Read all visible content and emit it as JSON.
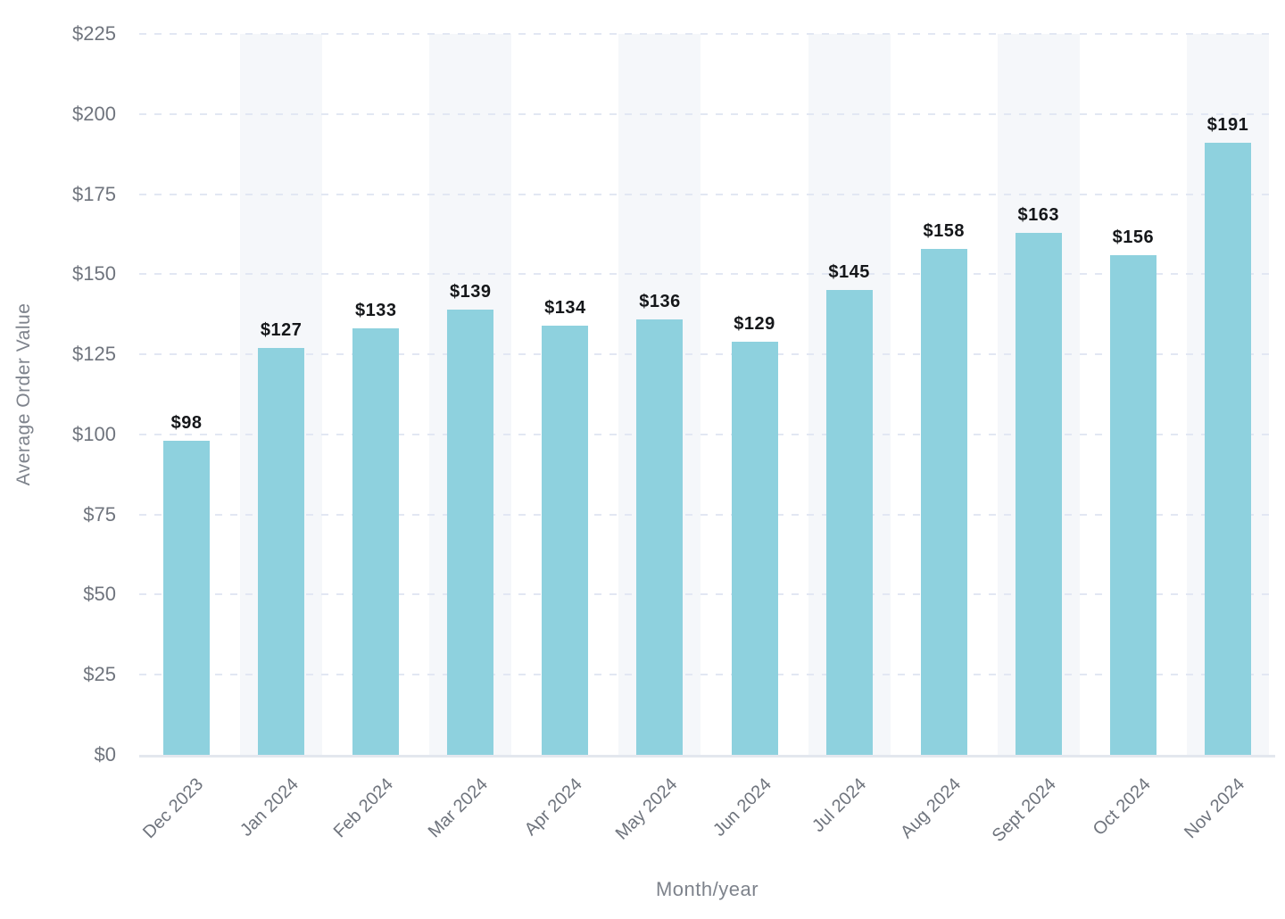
{
  "chart_data": {
    "type": "bar",
    "title": "",
    "xlabel": "Month/year",
    "ylabel": "Average Order Value",
    "ylim": [
      0,
      225
    ],
    "grid": "horizontal dashed gridlines every 25, no vertical gridlines",
    "legend": "none",
    "band_pattern": "light background band behind every second category starting with Jan 2024",
    "y_ticks": [
      {
        "value": 0,
        "label": "$0"
      },
      {
        "value": 25,
        "label": "$25"
      },
      {
        "value": 50,
        "label": "$50"
      },
      {
        "value": 75,
        "label": "$75"
      },
      {
        "value": 100,
        "label": "$100"
      },
      {
        "value": 125,
        "label": "$125"
      },
      {
        "value": 150,
        "label": "$150"
      },
      {
        "value": 175,
        "label": "$175"
      },
      {
        "value": 200,
        "label": "$200"
      },
      {
        "value": 225,
        "label": "$225"
      }
    ],
    "points": [
      {
        "category": "Dec 2023",
        "value": 98,
        "label": "$98"
      },
      {
        "category": "Jan 2024",
        "value": 127,
        "label": "$127"
      },
      {
        "category": "Feb 2024",
        "value": 133,
        "label": "$133"
      },
      {
        "category": "Mar 2024",
        "value": 139,
        "label": "$139"
      },
      {
        "category": "Apr 2024",
        "value": 134,
        "label": "$134"
      },
      {
        "category": "May 2024",
        "value": 136,
        "label": "$136"
      },
      {
        "category": "Jun 2024",
        "value": 129,
        "label": "$129"
      },
      {
        "category": "Jul 2024",
        "value": 145,
        "label": "$145"
      },
      {
        "category": "Aug 2024",
        "value": 158,
        "label": "$158"
      },
      {
        "category": "Sept 2024",
        "value": 163,
        "label": "$163"
      },
      {
        "category": "Oct 2024",
        "value": 156,
        "label": "$156"
      },
      {
        "category": "Nov 2024",
        "value": 191,
        "label": "$191"
      }
    ],
    "colors": {
      "bar": "#8ed1de",
      "band": "#f5f7fa",
      "gridline": "#e2e7f3",
      "axis_line": "#e3e7ee",
      "tick_text": "#6f747d",
      "axis_title_text": "#7e838c",
      "value_label_text": "#15171a"
    }
  }
}
